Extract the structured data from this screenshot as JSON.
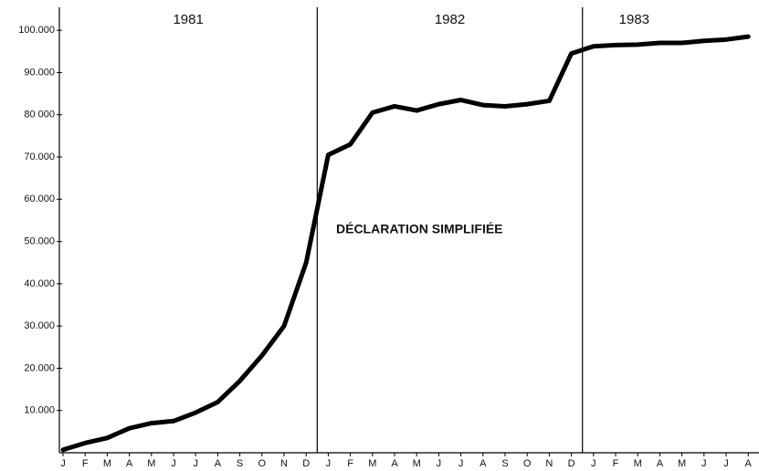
{
  "chart_data": {
    "type": "line",
    "categories": [
      "J",
      "F",
      "M",
      "A",
      "M",
      "J",
      "J",
      "A",
      "S",
      "O",
      "N",
      "D",
      "J",
      "F",
      "M",
      "A",
      "M",
      "J",
      "J",
      "A",
      "S",
      "O",
      "N",
      "D",
      "J",
      "F",
      "M",
      "A",
      "M",
      "J",
      "J",
      "A"
    ],
    "series": [
      {
        "color": "#000000",
        "values": [
          700,
          2300,
          3500,
          5800,
          7000,
          7500,
          9500,
          12000,
          17000,
          23000,
          30000,
          45000,
          70500,
          73000,
          80500,
          82000,
          81000,
          82500,
          83500,
          82300,
          82000,
          82500,
          83300,
          94500,
          96200,
          96500,
          96600,
          97000,
          97000,
          97500,
          97800,
          98500
        ]
      }
    ],
    "years": [
      "1981",
      "1982",
      "1983"
    ],
    "annotation": "DÉCLARATION SIMPLIFIÉE",
    "ylim": [
      0,
      105000
    ],
    "yticks": [
      {
        "value": 10000,
        "label": "10.000"
      },
      {
        "value": 20000,
        "label": "20.000"
      },
      {
        "value": 30000,
        "label": "30.000"
      },
      {
        "value": 40000,
        "label": "40.000"
      },
      {
        "value": 50000,
        "label": "50.000"
      },
      {
        "value": 60000,
        "label": "60.000"
      },
      {
        "value": 70000,
        "label": "70.000"
      },
      {
        "value": 80000,
        "label": "80 000"
      },
      {
        "value": 90000,
        "label": "90.000"
      },
      {
        "value": 100000,
        "label": "100.000"
      }
    ]
  }
}
